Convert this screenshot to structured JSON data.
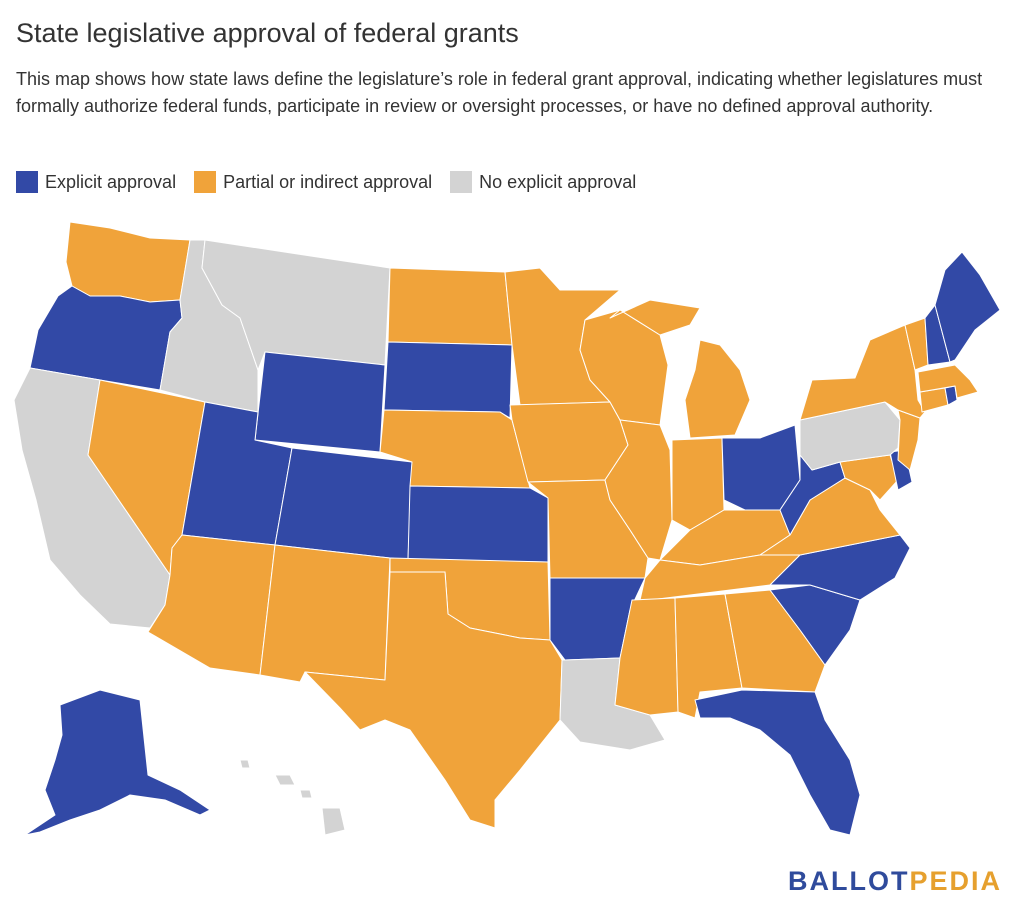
{
  "title": "State legislative approval of federal grants",
  "subtitle": "This map shows how state laws define the legislature’s role in federal grant approval, indicating whether legislatures must formally authorize federal funds, participate in review or oversight processes, or have no defined approval authority.",
  "legend": [
    {
      "label": "Explicit approval",
      "color": "#3249a6"
    },
    {
      "label": "Partial or indirect approval",
      "color": "#f0a33a"
    },
    {
      "label": "No explicit approval",
      "color": "#d3d3d3"
    }
  ],
  "states": {
    "WA": "partial",
    "OR": "explicit",
    "CA": "none",
    "NV": "partial",
    "ID": "none",
    "MT": "none",
    "WY": "explicit",
    "UT": "explicit",
    "CO": "explicit",
    "AZ": "partial",
    "NM": "partial",
    "ND": "partial",
    "SD": "explicit",
    "NE": "partial",
    "KS": "explicit",
    "OK": "partial",
    "TX": "partial",
    "MN": "partial",
    "IA": "partial",
    "MO": "partial",
    "AR": "explicit",
    "LA": "none",
    "WI": "partial",
    "IL": "partial",
    "MI": "partial",
    "IN": "partial",
    "OH": "explicit",
    "KY": "partial",
    "TN": "partial",
    "MS": "partial",
    "AL": "partial",
    "GA": "partial",
    "FL": "explicit",
    "SC": "explicit",
    "NC": "explicit",
    "VA": "partial",
    "WV": "explicit",
    "MD": "partial",
    "DE": "explicit",
    "PA": "none",
    "NJ": "partial",
    "NY": "partial",
    "CT": "partial",
    "RI": "explicit",
    "MA": "partial",
    "VT": "partial",
    "NH": "explicit",
    "ME": "explicit",
    "AK": "explicit",
    "HI": "none"
  },
  "category_colors": {
    "explicit": "#3249a6",
    "partial": "#f0a33a",
    "none": "#d3d3d3"
  },
  "logo": {
    "part1": "BALLOT",
    "part2": "PEDIA"
  }
}
